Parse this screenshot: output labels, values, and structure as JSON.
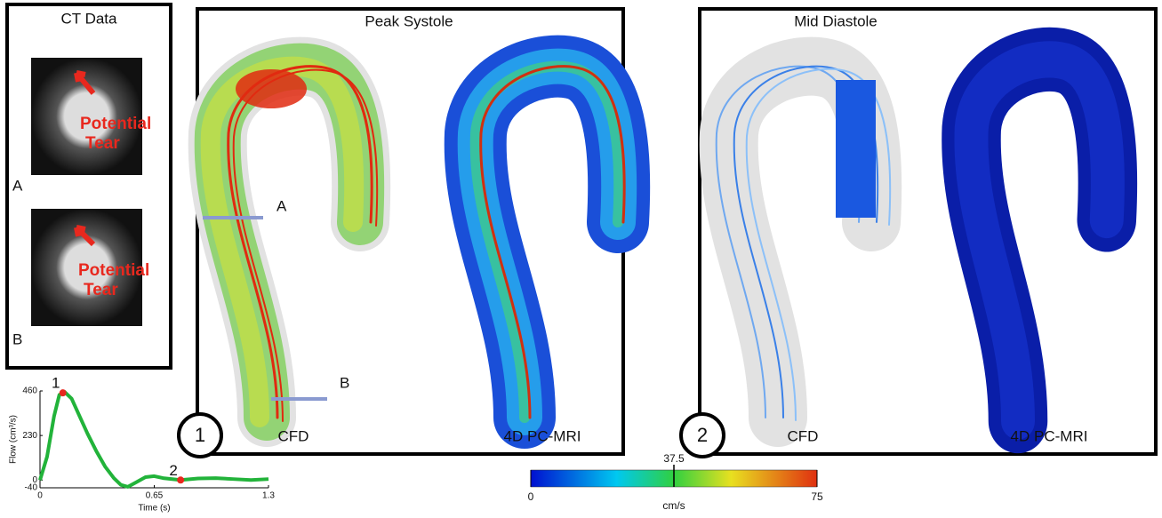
{
  "panels": {
    "ct": {
      "title": "CT Data",
      "image_a": "A",
      "image_b": "B",
      "annotation_a": [
        "Potential",
        "Tear"
      ],
      "annotation_b": [
        "Potential",
        "Tear"
      ]
    },
    "systole": {
      "title": "Peak Systole",
      "badge": "1",
      "plane_a": "A",
      "plane_b": "B",
      "left_label": "CFD",
      "right_label": "4D PC-MRI"
    },
    "diastole": {
      "title": "Mid Diastole",
      "badge": "2",
      "left_label": "CFD",
      "right_label": "4D PC-MRI"
    }
  },
  "chart_data": {
    "type": "line",
    "xlabel": "Time (s)",
    "ylabel": "Flow (cm³/s)",
    "color": "#22b33a",
    "x": [
      0,
      0.04,
      0.08,
      0.11,
      0.14,
      0.18,
      0.22,
      0.27,
      0.32,
      0.37,
      0.42,
      0.46,
      0.5,
      0.55,
      0.6,
      0.65,
      0.7,
      0.8,
      0.9,
      1.0,
      1.1,
      1.2,
      1.3
    ],
    "values": [
      0,
      120,
      330,
      440,
      455,
      420,
      340,
      240,
      150,
      70,
      10,
      -25,
      -35,
      -10,
      15,
      20,
      10,
      0,
      8,
      10,
      5,
      0,
      5
    ],
    "xlim": [
      0,
      1.3
    ],
    "ylim": [
      -40,
      460
    ],
    "xticks": [
      0,
      0.65,
      1.3
    ],
    "yticks": [
      -40,
      0,
      230,
      460
    ],
    "markers": [
      {
        "label": "1",
        "x": 0.13,
        "y": 450,
        "color": "#e8281e"
      },
      {
        "label": "2",
        "x": 0.8,
        "y": 0,
        "color": "#e8281e"
      }
    ]
  },
  "colorbar": {
    "label": "cm/s",
    "range": [
      0,
      75
    ],
    "ticks": [
      0,
      37.5,
      75
    ]
  }
}
